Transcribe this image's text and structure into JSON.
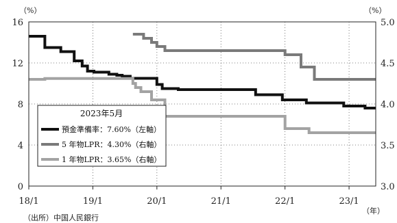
{
  "chart_data": {
    "type": "line",
    "step": true,
    "left_axis": {
      "unit": "（%）",
      "ylim": [
        0,
        16
      ],
      "ticks": [
        "0",
        "4",
        "8",
        "12",
        "16"
      ]
    },
    "right_axis": {
      "unit": "（%）",
      "ylim": [
        3.0,
        5.0
      ],
      "ticks": [
        "3.0",
        "3.5",
        "4.0",
        "4.5",
        "5.0"
      ]
    },
    "x_axis": {
      "unit": "（年）",
      "ticks": [
        "18/1",
        "19/1",
        "20/1",
        "21/1",
        "22/1",
        "23/1"
      ],
      "tick_values": [
        0,
        12,
        24,
        36,
        48,
        60
      ],
      "range": [
        0,
        65
      ]
    },
    "legend": {
      "title": "2023年5月",
      "placement": "lower-left",
      "entries": [
        {
          "label": "預金準備率：7.60%（左軸）",
          "color": "#111111"
        },
        {
          "label": "5 年物LPR：4.30%（右軸）",
          "color": "#7a7a7a"
        },
        {
          "label": "1 年物LPR：3.65%（右軸）",
          "color": "#a3a3a3"
        }
      ]
    },
    "series": [
      {
        "axis": "left",
        "color": "#111111",
        "x": [
          0,
          3,
          3,
          6,
          6,
          8.5,
          8.5,
          10,
          10,
          11,
          11,
          12.2,
          12.2,
          15,
          15,
          16.5,
          16.5,
          17.5,
          17.5,
          19,
          19,
          24,
          24,
          25,
          25,
          28,
          28,
          42.5,
          42.5,
          47.5,
          47.5,
          52,
          52,
          59,
          59,
          63,
          63,
          65
        ],
        "y": [
          14.6,
          14.6,
          13.5,
          13.5,
          13.1,
          13.1,
          12.2,
          12.2,
          11.7,
          11.7,
          11.2,
          11.2,
          11.1,
          11.1,
          10.9,
          10.9,
          10.8,
          10.8,
          10.7,
          10.7,
          10.5,
          10.5,
          9.9,
          9.9,
          9.5,
          9.5,
          9.4,
          9.4,
          8.9,
          8.9,
          8.4,
          8.4,
          8.1,
          8.1,
          7.8,
          7.8,
          7.6,
          7.6
        ]
      },
      {
        "axis": "right",
        "color": "#7a7a7a",
        "x": [
          19.5,
          21.5,
          21.5,
          23,
          23,
          24,
          24,
          25.5,
          25.5,
          48,
          48,
          51,
          51,
          53.5,
          53.5,
          65
        ],
        "y": [
          4.85,
          4.85,
          4.8,
          4.8,
          4.75,
          4.75,
          4.7,
          4.7,
          4.65,
          4.65,
          4.6,
          4.6,
          4.45,
          4.45,
          4.3,
          4.3
        ]
      },
      {
        "axis": "right",
        "color": "#a3a3a3",
        "x": [
          0,
          3,
          3,
          19.5,
          19.5,
          20,
          20,
          21,
          21,
          23,
          23,
          25.5,
          25.5,
          48,
          48,
          52.5,
          52.5,
          65
        ],
        "y": [
          4.3,
          4.3,
          4.31,
          4.31,
          4.25,
          4.25,
          4.2,
          4.2,
          4.15,
          4.15,
          4.05,
          4.05,
          3.85,
          3.85,
          3.7,
          3.7,
          3.65,
          3.65
        ]
      }
    ]
  },
  "source_note": "（出所）中国人民銀行"
}
